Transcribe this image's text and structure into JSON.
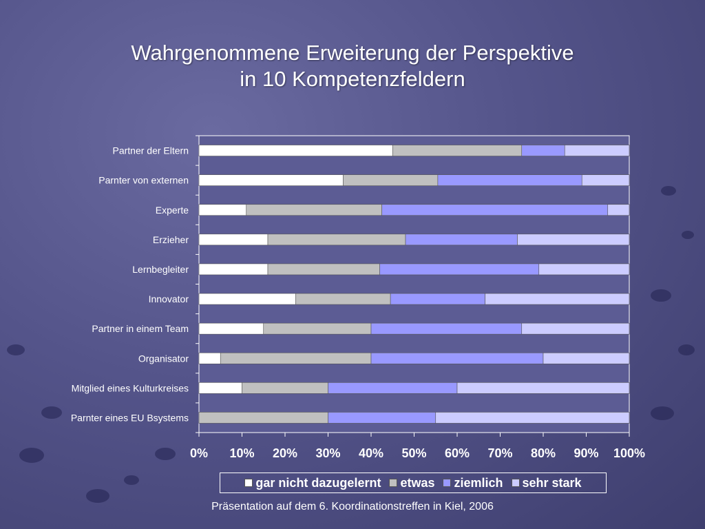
{
  "title_line1": "Wahrgenommene Erweiterung der Perspektive",
  "title_line2": "in 10 Kompetenzfeldern",
  "footer": "Präsentation auf dem 6. Koordinationstreffen in Kiel, 2006",
  "chart_data": {
    "type": "bar",
    "orientation": "horizontal",
    "stacked": "100%",
    "categories": [
      "Partner der Eltern",
      "Parnter von externen",
      "Experte",
      "Erzieher",
      "Lernbegleiter",
      "Innovator",
      "Partner in einem Team",
      "Organisator",
      "Mitglied eines Kulturkreises",
      "Parnter eines EU Bsystems"
    ],
    "series": [
      {
        "name": "gar nicht dazugelernt",
        "color": "#ffffff",
        "values": [
          45,
          33.5,
          11,
          16,
          16,
          22.5,
          15,
          5,
          10,
          0
        ]
      },
      {
        "name": "etwas",
        "color": "#c0c0c0",
        "values": [
          30,
          22,
          31.5,
          32,
          26,
          22,
          25,
          35,
          20,
          30
        ]
      },
      {
        "name": "ziemlich",
        "color": "#9999ff",
        "values": [
          10,
          33.5,
          52.5,
          26,
          37,
          22,
          35,
          40,
          30,
          25
        ]
      },
      {
        "name": "sehr stark",
        "color": "#ccccff",
        "values": [
          15,
          11,
          5,
          26,
          21,
          33.5,
          25,
          20,
          40,
          45
        ]
      }
    ],
    "xticks": [
      "0%",
      "10%",
      "20%",
      "30%",
      "40%",
      "50%",
      "60%",
      "70%",
      "80%",
      "90%",
      "100%"
    ],
    "xlim": [
      0,
      100
    ],
    "grid": false,
    "legend": "bottom"
  }
}
